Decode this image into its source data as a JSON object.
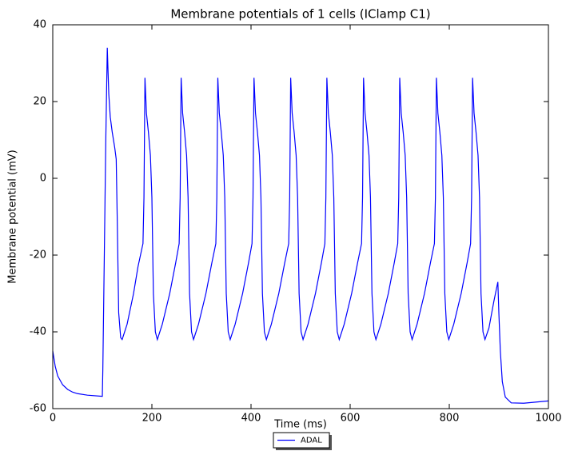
{
  "chart_data": {
    "type": "line",
    "title": "Membrane potentials of 1 cells (IClamp C1)",
    "xlabel": "Time (ms)",
    "ylabel": "Membrane potential (mV)",
    "xlim": [
      0,
      1000
    ],
    "xticks": [
      0,
      200,
      400,
      600,
      800,
      1000
    ],
    "ylim": [
      -60,
      40
    ],
    "yticks": [
      -60,
      -40,
      -20,
      0,
      20,
      40
    ],
    "legend": "lower center",
    "x": [
      0,
      5,
      10,
      20,
      30,
      40,
      50,
      70,
      100,
      101,
      104,
      107,
      110,
      113,
      116,
      120,
      125,
      128,
      130,
      133,
      137,
      140,
      150,
      163,
      172,
      182,
      184,
      186,
      189,
      193,
      197,
      200,
      203,
      207,
      211,
      221,
      236,
      248,
      255,
      257,
      259,
      262,
      266,
      270,
      273,
      276,
      280,
      284,
      294,
      309,
      321,
      329,
      331,
      333,
      336,
      340,
      344,
      347,
      350,
      354,
      358,
      368,
      383,
      395,
      402,
      404,
      406,
      409,
      413,
      417,
      420,
      423,
      427,
      431,
      441,
      456,
      468,
      476,
      478,
      480,
      483,
      487,
      491,
      494,
      497,
      501,
      505,
      515,
      530,
      542,
      549,
      551,
      553,
      556,
      560,
      564,
      567,
      570,
      574,
      578,
      588,
      603,
      615,
      623,
      625,
      627,
      630,
      634,
      638,
      641,
      644,
      648,
      652,
      662,
      677,
      689,
      696,
      698,
      700,
      703,
      707,
      711,
      714,
      717,
      721,
      725,
      735,
      750,
      762,
      770,
      772,
      774,
      777,
      781,
      785,
      788,
      791,
      795,
      799,
      809,
      824,
      836,
      843,
      845,
      847,
      850,
      854,
      858,
      861,
      864,
      868,
      872,
      880,
      890,
      898,
      900,
      903,
      907,
      913,
      925,
      950,
      1000
    ],
    "series": [
      {
        "name": "ADAL",
        "color": "#0000ff",
        "values": [
          -45,
          -49,
          -51.5,
          -53.8,
          -55,
          -55.7,
          -56.1,
          -56.5,
          -56.8,
          -50,
          -20,
          10,
          34,
          22,
          16,
          12,
          8,
          5,
          -10,
          -35,
          -41.5,
          -42,
          -38,
          -30,
          -23,
          -17,
          -5,
          26.2,
          17,
          12,
          6,
          -5,
          -30,
          -40,
          -42,
          -38,
          -30,
          -22,
          -17,
          -5,
          26.2,
          17,
          12,
          6,
          -5,
          -30,
          -40,
          -42,
          -38,
          -30,
          -22,
          -17,
          -5,
          26.2,
          17,
          12,
          6,
          -5,
          -30,
          -40,
          -42,
          -38,
          -30,
          -22,
          -17,
          -5,
          26.2,
          17,
          12,
          6,
          -5,
          -30,
          -40,
          -42,
          -38,
          -30,
          -22,
          -17,
          -5,
          26.2,
          17,
          12,
          6,
          -5,
          -30,
          -40,
          -42,
          -38,
          -30,
          -22,
          -17,
          -5,
          26.2,
          17,
          12,
          6,
          -5,
          -30,
          -40,
          -42,
          -38,
          -30,
          -22,
          -17,
          -5,
          26.2,
          17,
          12,
          6,
          -5,
          -30,
          -40,
          -42,
          -38,
          -30,
          -22,
          -17,
          -5,
          26.2,
          17,
          12,
          6,
          -5,
          -30,
          -40,
          -42,
          -38,
          -30,
          -22,
          -17,
          -5,
          26.2,
          17,
          12,
          6,
          -5,
          -30,
          -40,
          -42,
          -38,
          -30,
          -22,
          -17,
          -5,
          26.2,
          17,
          12,
          6,
          -5,
          -30,
          -40,
          -42,
          -39,
          -32,
          -27,
          -35,
          -45,
          -53,
          -57,
          -58.5,
          -58.6,
          -58
        ]
      }
    ]
  }
}
